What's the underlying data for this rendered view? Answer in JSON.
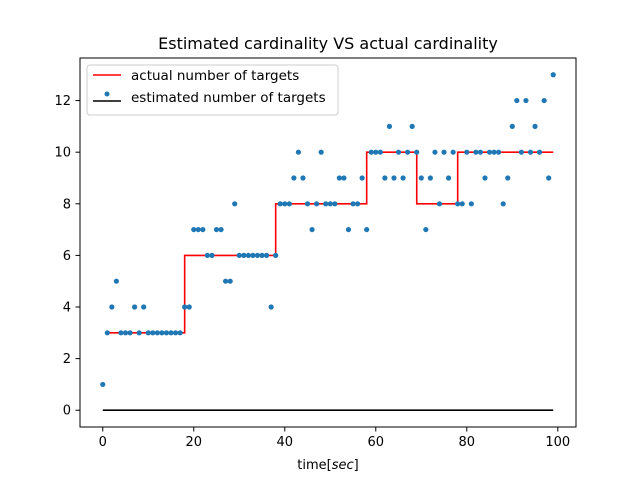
{
  "chart_data": {
    "type": "line",
    "title": "Estimated cardinality VS actual cardinality",
    "xlabel_prefix": "time",
    "xlabel_unit": "sec",
    "xlabel_open": "[",
    "xlabel_close": "]",
    "ylabel": "",
    "xlim": [
      -5,
      104
    ],
    "ylim": [
      -0.65,
      13.65
    ],
    "xticks": [
      0,
      20,
      40,
      60,
      80,
      100
    ],
    "yticks": [
      0,
      2,
      4,
      6,
      8,
      10,
      12
    ],
    "grid": false,
    "legend_position": "upper-left",
    "colors": {
      "actual": "#ff0000",
      "estimated_line": "#000000",
      "points": "#1f77b4"
    },
    "series": [
      {
        "name": "actual number of targets",
        "kind": "step",
        "x": [
          1,
          18,
          18,
          38,
          38,
          58,
          58,
          69,
          69,
          78,
          78,
          99
        ],
        "y": [
          3,
          3,
          6,
          6,
          8,
          8,
          10,
          10,
          8,
          8,
          10,
          10
        ]
      },
      {
        "name": "estimated number of targets",
        "kind": "line",
        "x": [
          0,
          99
        ],
        "y": [
          0,
          0
        ]
      },
      {
        "name": "",
        "kind": "scatter",
        "x": [
          0,
          1,
          2,
          3,
          4,
          5,
          6,
          7,
          8,
          9,
          10,
          11,
          12,
          13,
          14,
          15,
          16,
          17,
          18,
          19,
          20,
          21,
          22,
          23,
          24,
          25,
          26,
          27,
          28,
          29,
          30,
          31,
          32,
          33,
          34,
          35,
          36,
          37,
          38,
          39,
          40,
          41,
          42,
          43,
          44,
          45,
          46,
          47,
          48,
          49,
          50,
          51,
          52,
          53,
          54,
          55,
          56,
          57,
          58,
          59,
          60,
          61,
          62,
          63,
          64,
          65,
          66,
          67,
          68,
          69,
          70,
          71,
          72,
          73,
          74,
          75,
          76,
          77,
          78,
          79,
          80,
          81,
          82,
          83,
          84,
          85,
          86,
          87,
          88,
          89,
          90,
          91,
          92,
          93,
          94,
          95,
          96,
          97,
          98,
          99
        ],
        "y": [
          1,
          3,
          4,
          5,
          3,
          3,
          3,
          4,
          3,
          4,
          3,
          3,
          3,
          3,
          3,
          3,
          3,
          3,
          4,
          4,
          7,
          7,
          7,
          6,
          6,
          7,
          7,
          5,
          5,
          8,
          6,
          6,
          6,
          6,
          6,
          6,
          6,
          4,
          6,
          8,
          8,
          8,
          9,
          10,
          9,
          8,
          7,
          8,
          10,
          8,
          8,
          8,
          9,
          9,
          7,
          8,
          8,
          9,
          7,
          10,
          10,
          10,
          9,
          11,
          9,
          10,
          9,
          10,
          11,
          10,
          9,
          7,
          9,
          10,
          8,
          10,
          9,
          10,
          8,
          8,
          10,
          8,
          10,
          10,
          9,
          10,
          10,
          10,
          8,
          9,
          11,
          12,
          10,
          12,
          10,
          11,
          10,
          12,
          9,
          13
        ]
      }
    ]
  }
}
